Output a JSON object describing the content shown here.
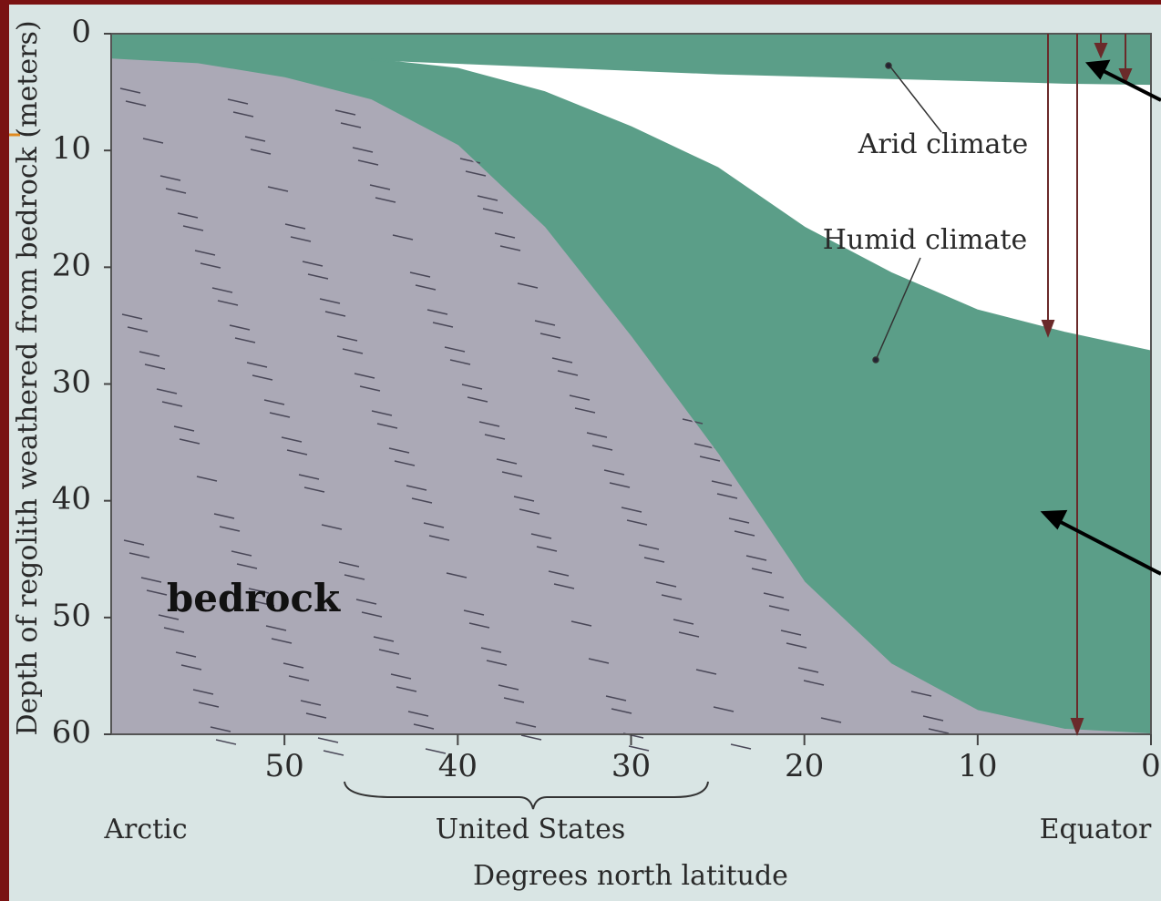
{
  "chart_data": {
    "type": "area",
    "y_label": "Depth of regolith weathered from bedrock (meters)",
    "x_label": "Degrees north latitude",
    "x": [
      60,
      55,
      50,
      45,
      40,
      35,
      30,
      25,
      20,
      15,
      10,
      5,
      0
    ],
    "series": [
      {
        "name": "bedrock",
        "color": "#aba9b6",
        "values": [
          2.2,
          2.6,
          3.8,
          5.7,
          9.6,
          16.6,
          26,
          36,
          47,
          54,
          58,
          59.6,
          60
        ]
      },
      {
        "name": "Humid climate",
        "color": "#5b9e88",
        "values": [
          null,
          null,
          null,
          2.2,
          3,
          5,
          8,
          11.5,
          16.6,
          20.5,
          23.7,
          25.6,
          27.2
        ]
      },
      {
        "name": "Arid climate",
        "color": "#5b9e88",
        "values": [
          null,
          null,
          null,
          2.2,
          2.5,
          2.8,
          3.1,
          3.4,
          3.6,
          3.8,
          4,
          4.2,
          4.3
        ]
      }
    ],
    "xlim": [
      60,
      0
    ],
    "xticks": [
      50,
      40,
      30,
      20,
      10,
      0
    ],
    "ylim": [
      0,
      60
    ],
    "yticks": [
      0,
      10,
      20,
      30,
      40,
      50,
      60
    ],
    "region_labels": [
      "Arctic",
      "United States",
      "Equator"
    ]
  }
}
